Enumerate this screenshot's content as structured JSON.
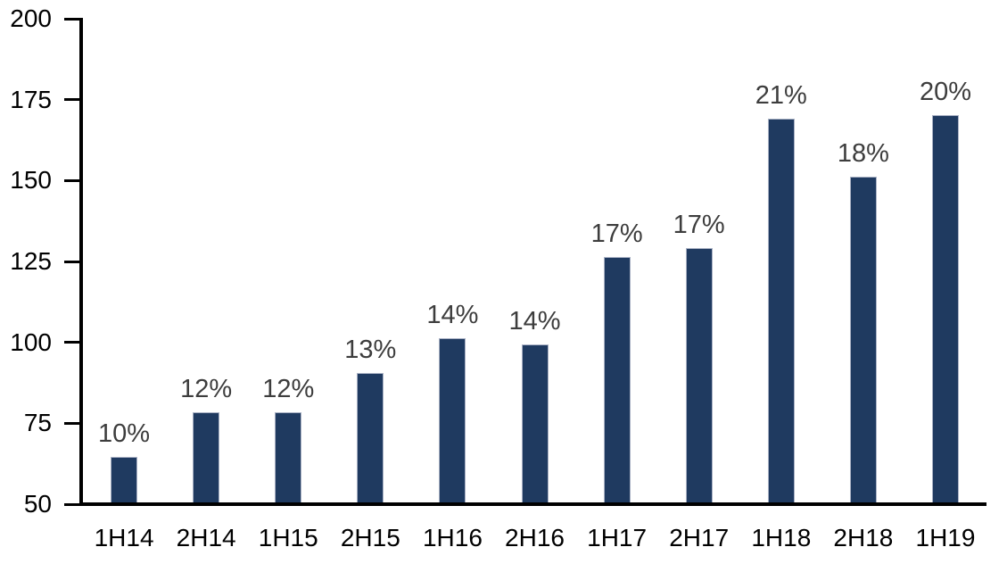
{
  "chart_data": {
    "type": "bar",
    "title": "",
    "xlabel": "",
    "ylabel": "",
    "categories": [
      "1H14",
      "2H14",
      "1H15",
      "2H15",
      "1H16",
      "2H16",
      "1H17",
      "2H17",
      "1H18",
      "2H18",
      "1H19"
    ],
    "values": [
      64,
      78,
      78,
      90,
      101,
      99,
      126,
      129,
      169,
      151,
      170
    ],
    "point_labels": [
      "10%",
      "12%",
      "12%",
      "13%",
      "14%",
      "14%",
      "17%",
      "17%",
      "21%",
      "18%",
      "20%"
    ],
    "ylim": [
      50,
      200
    ],
    "yticks": [
      50,
      75,
      100,
      125,
      150,
      175,
      200
    ],
    "grid": false,
    "legend": "none",
    "colors": {
      "bar_fill": "#1f3a60",
      "bar_border": "#a9b1c4",
      "data_label": "#3d3d3d",
      "axis": "#000000",
      "background": "#ffffff"
    }
  }
}
